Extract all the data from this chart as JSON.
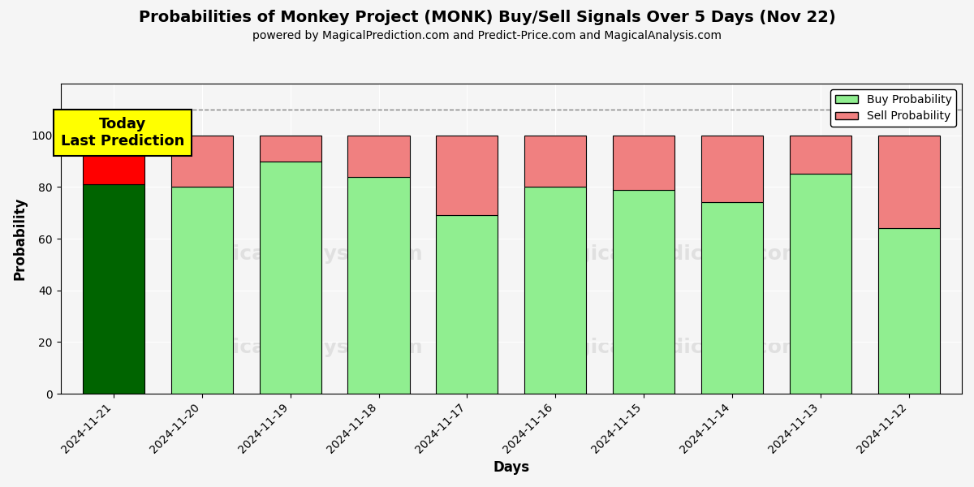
{
  "title": "Probabilities of Monkey Project (MONK) Buy/Sell Signals Over 5 Days (Nov 22)",
  "subtitle": "powered by MagicalPrediction.com and Predict-Price.com and MagicalAnalysis.com",
  "xlabel": "Days",
  "ylabel": "Probability",
  "dates": [
    "2024-11-21",
    "2024-11-20",
    "2024-11-19",
    "2024-11-18",
    "2024-11-17",
    "2024-11-16",
    "2024-11-15",
    "2024-11-14",
    "2024-11-13",
    "2024-11-12"
  ],
  "buy_probs": [
    81,
    80,
    90,
    84,
    69,
    80,
    79,
    74,
    85,
    64
  ],
  "sell_probs": [
    19,
    20,
    10,
    16,
    31,
    20,
    21,
    26,
    15,
    36
  ],
  "today_buy_color": "#006400",
  "today_sell_color": "#FF0000",
  "buy_color": "#90EE90",
  "sell_color": "#F08080",
  "today_label_bg": "#FFFF00",
  "today_label_text": "Today\nLast Prediction",
  "dashed_line_y": 110,
  "ylim": [
    0,
    120
  ],
  "yticks": [
    0,
    20,
    40,
    60,
    80,
    100
  ],
  "legend_buy": "Buy Probability",
  "legend_sell": "Sell Probability",
  "bar_width": 0.7,
  "edge_color": "#000000",
  "bg_color": "#f5f5f5"
}
